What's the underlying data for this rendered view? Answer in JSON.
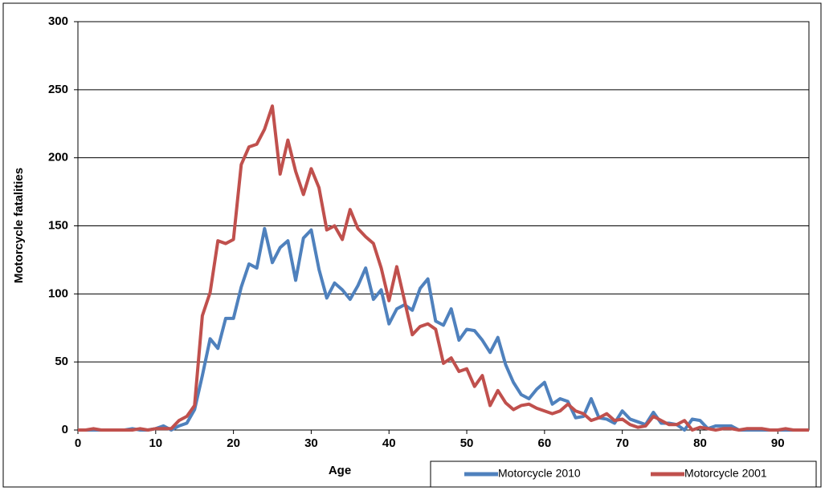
{
  "chart_data": {
    "type": "line",
    "x_label": "Age",
    "y_label": "Motorcycle fatalities",
    "x": [
      0,
      1,
      2,
      3,
      4,
      5,
      6,
      7,
      8,
      9,
      10,
      11,
      12,
      13,
      14,
      15,
      16,
      17,
      18,
      19,
      20,
      21,
      22,
      23,
      24,
      25,
      26,
      27,
      28,
      29,
      30,
      31,
      32,
      33,
      34,
      35,
      36,
      37,
      38,
      39,
      40,
      41,
      42,
      43,
      44,
      45,
      46,
      47,
      48,
      49,
      50,
      51,
      52,
      53,
      54,
      55,
      56,
      57,
      58,
      59,
      60,
      61,
      62,
      63,
      64,
      65,
      66,
      67,
      68,
      69,
      70,
      71,
      72,
      73,
      74,
      75,
      76,
      77,
      78,
      79,
      80,
      81,
      82,
      83,
      84,
      85,
      86,
      87,
      88,
      89,
      90,
      91,
      92,
      93,
      94
    ],
    "series": [
      {
        "name": "Motorcycle 2010",
        "color": "#4f81bd",
        "values": [
          0,
          0,
          0,
          0,
          0,
          0,
          0,
          1,
          0,
          0,
          1,
          3,
          0,
          3,
          5,
          15,
          40,
          67,
          60,
          82,
          82,
          105,
          122,
          119,
          148,
          123,
          134,
          139,
          110,
          141,
          147,
          118,
          97,
          108,
          103,
          96,
          106,
          119,
          96,
          103,
          78,
          89,
          92,
          88,
          104,
          111,
          80,
          77,
          89,
          66,
          74,
          73,
          66,
          57,
          68,
          48,
          35,
          26,
          23,
          30,
          35,
          19,
          23,
          21,
          9,
          10,
          23,
          9,
          8,
          5,
          14,
          8,
          6,
          4,
          13,
          5,
          5,
          4,
          0,
          8,
          7,
          1,
          3,
          3,
          3,
          0,
          0,
          0,
          0,
          0,
          0,
          0,
          0,
          0,
          0
        ]
      },
      {
        "name": "Motorcycle 2001",
        "color": "#c0504d",
        "values": [
          0,
          0,
          1,
          0,
          0,
          0,
          0,
          0,
          1,
          0,
          1,
          1,
          1,
          7,
          10,
          18,
          84,
          101,
          139,
          137,
          140,
          195,
          208,
          210,
          221,
          238,
          188,
          213,
          190,
          173,
          192,
          178,
          147,
          150,
          140,
          162,
          148,
          142,
          137,
          119,
          95,
          120,
          95,
          70,
          76,
          78,
          74,
          49,
          53,
          43,
          45,
          32,
          40,
          18,
          29,
          20,
          15,
          18,
          19,
          16,
          14,
          12,
          14,
          19,
          14,
          12,
          7,
          9,
          12,
          7,
          8,
          4,
          2,
          3,
          10,
          7,
          4,
          4,
          7,
          0,
          2,
          1,
          0,
          1,
          1,
          0,
          1,
          1,
          1,
          0,
          0,
          1,
          0,
          0,
          0
        ]
      }
    ],
    "xlim": [
      0,
      94
    ],
    "xticks": [
      0,
      10,
      20,
      30,
      40,
      50,
      60,
      70,
      80,
      90
    ],
    "ylim": [
      0,
      300
    ],
    "yticks": [
      0,
      50,
      100,
      150,
      200,
      250,
      300
    ],
    "grid": true,
    "legend": "lower right"
  }
}
